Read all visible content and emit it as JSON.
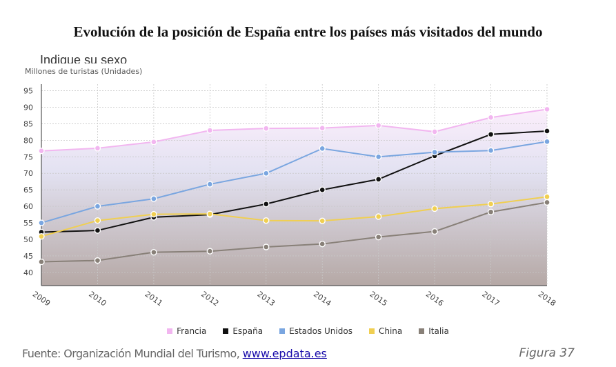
{
  "document": {
    "title": "Evolución de la posición de España entre los países más visitados del mundo",
    "overlap_text": "Indique su sexo",
    "source_text": "Fuente: Organización Mundial del Turismo, ",
    "source_link": "www.epdata.es",
    "figure_label": "Figura 37"
  },
  "chart_data": {
    "type": "line",
    "title": "",
    "ylabel": "Millones de turistas (Unidades)",
    "xlabel": "",
    "categories": [
      "2009",
      "2010",
      "2011",
      "2012",
      "2013",
      "2014",
      "2015",
      "2016",
      "2017",
      "2018"
    ],
    "yticks": [
      40,
      45,
      50,
      55,
      60,
      65,
      70,
      75,
      80,
      85,
      90,
      95
    ],
    "ylim": [
      36,
      97
    ],
    "grid": true,
    "legend_position": "bottom",
    "series": [
      {
        "name": "Francia",
        "color": "#f2b6f0",
        "values": [
          76.8,
          77.6,
          79.5,
          83.0,
          83.6,
          83.7,
          84.5,
          82.6,
          86.9,
          89.4
        ]
      },
      {
        "name": "España",
        "color": "#111111",
        "values": [
          52.2,
          52.7,
          56.7,
          57.5,
          60.7,
          65.0,
          68.2,
          75.3,
          81.8,
          82.8
        ]
      },
      {
        "name": "Estados Unidos",
        "color": "#7aa6e0",
        "values": [
          55.0,
          60.0,
          62.3,
          66.7,
          70.0,
          77.5,
          75.0,
          76.4,
          76.9,
          79.6
        ]
      },
      {
        "name": "China",
        "color": "#f0cf52",
        "values": [
          50.9,
          55.7,
          57.6,
          57.7,
          55.7,
          55.6,
          56.9,
          59.3,
          60.7,
          62.9
        ]
      },
      {
        "name": "Italia",
        "color": "#888078",
        "values": [
          43.2,
          43.6,
          46.1,
          46.4,
          47.7,
          48.6,
          50.7,
          52.4,
          58.3,
          61.2
        ]
      }
    ]
  }
}
